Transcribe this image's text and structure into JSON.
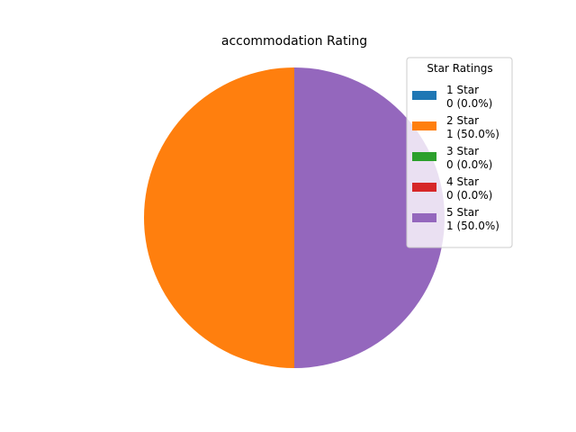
{
  "chart_data": {
    "type": "pie",
    "title": "accommodation Rating",
    "legend": {
      "title": "Star Ratings",
      "placement": "right"
    },
    "slices": [
      {
        "label": "1 Star",
        "value": 0,
        "percent_text": "0 (0.0%)",
        "color": "#1f77b4"
      },
      {
        "label": "2 Star",
        "value": 1,
        "percent_text": "1 (50.0%)",
        "color": "#ff7f0e"
      },
      {
        "label": "3 Star",
        "value": 0,
        "percent_text": "0 (0.0%)",
        "color": "#2ca02c"
      },
      {
        "label": "4 Star",
        "value": 0,
        "percent_text": "0 (0.0%)",
        "color": "#d62728"
      },
      {
        "label": "5 Star",
        "value": 1,
        "percent_text": "1 (50.0%)",
        "color": "#9467bd"
      }
    ]
  }
}
